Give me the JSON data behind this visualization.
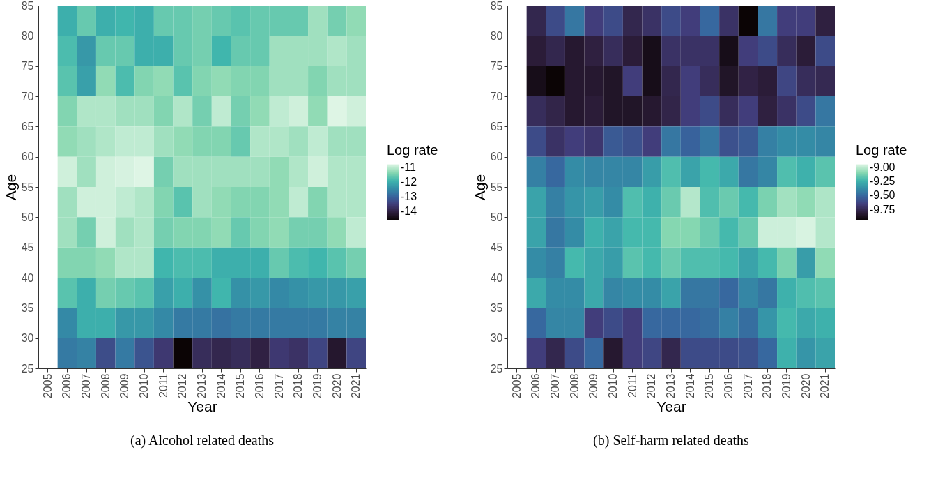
{
  "chart_data": [
    {
      "type": "heatmap",
      "annotations": [
        "(a) Alcohol related deaths"
      ],
      "xlabel": "Year",
      "ylabel": "Age",
      "clabel": "Log rate",
      "categories": [
        "2005",
        "2006",
        "2007",
        "2008",
        "2009",
        "2010",
        "2011",
        "2012",
        "2013",
        "2014",
        "2015",
        "2016",
        "2017",
        "2018",
        "2019",
        "2020",
        "2021"
      ],
      "ylim": [
        25,
        85
      ],
      "yticks": [
        25,
        30,
        35,
        40,
        45,
        50,
        55,
        60,
        65,
        70,
        75,
        80,
        85
      ],
      "clim": [
        -14.6,
        -10.8
      ],
      "cticks": [
        -11,
        -12,
        -13,
        -14
      ],
      "cells": [
        [
          null,
          -12.0,
          -11.6,
          -12.0,
          -11.9,
          -12.0,
          -11.6,
          -11.6,
          -11.5,
          -11.6,
          -11.7,
          -11.6,
          -11.6,
          -11.6,
          -11.2,
          -11.5,
          -11.3
        ],
        [
          null,
          -11.8,
          -12.3,
          -11.6,
          -11.6,
          -12.0,
          -12.0,
          -11.6,
          -11.5,
          -11.9,
          -11.6,
          -11.6,
          -11.2,
          -11.2,
          -11.2,
          -11.1,
          -11.2
        ],
        [
          null,
          -11.7,
          -12.2,
          -11.3,
          -11.8,
          -11.4,
          -11.3,
          -11.7,
          -11.4,
          -11.3,
          -11.4,
          -11.4,
          -11.2,
          -11.2,
          -11.4,
          -11.2,
          -11.2
        ],
        [
          null,
          -11.4,
          -11.1,
          -11.1,
          -11.2,
          -11.2,
          -11.4,
          -11.1,
          -11.5,
          -11.0,
          -11.5,
          -11.3,
          -11.0,
          -10.9,
          -11.3,
          -10.8,
          -10.9
        ],
        [
          null,
          -11.3,
          -11.2,
          -11.1,
          -11.0,
          -11.0,
          -11.2,
          -11.3,
          -11.4,
          -11.4,
          -11.6,
          -11.1,
          -11.1,
          -11.2,
          -11.0,
          -11.2,
          -11.2
        ],
        [
          null,
          -10.9,
          -11.2,
          -10.9,
          -10.85,
          -10.8,
          -11.5,
          -11.2,
          -11.2,
          -11.2,
          -11.2,
          -11.2,
          -11.3,
          -11.1,
          -10.9,
          -11.1,
          -11.1
        ],
        [
          null,
          -11.2,
          -10.9,
          -10.9,
          -11.0,
          -11.1,
          -11.4,
          -11.7,
          -11.2,
          -11.3,
          -11.4,
          -11.4,
          -11.3,
          -11.0,
          -11.4,
          -11.1,
          -11.1
        ],
        [
          null,
          -11.2,
          -11.5,
          -10.9,
          -11.2,
          -11.1,
          -11.5,
          -11.4,
          -11.4,
          -11.3,
          -11.6,
          -11.4,
          -11.3,
          -11.5,
          -11.5,
          -11.3,
          -11.0
        ],
        [
          null,
          -11.4,
          -11.4,
          -11.3,
          -11.1,
          -11.1,
          -11.9,
          -11.8,
          -11.8,
          -12.0,
          -12.0,
          -12.0,
          -11.6,
          -11.8,
          -11.9,
          -11.7,
          -11.5
        ],
        [
          null,
          -11.7,
          -12.0,
          -11.5,
          -11.6,
          -11.7,
          -12.2,
          -12.0,
          -12.4,
          -11.9,
          -12.4,
          -12.3,
          -12.5,
          -12.4,
          -12.3,
          -12.3,
          -12.2
        ],
        [
          null,
          -12.5,
          -12.0,
          -12.0,
          -12.3,
          -12.3,
          -12.5,
          -12.7,
          -12.7,
          -12.8,
          -12.7,
          -12.7,
          -12.7,
          -12.7,
          -12.7,
          -12.6,
          -12.6
        ],
        [
          null,
          -12.7,
          -12.6,
          -13.3,
          -12.7,
          -13.2,
          -13.6,
          -14.6,
          -13.8,
          -13.9,
          -13.8,
          -14.0,
          -13.6,
          -13.7,
          -13.4,
          -14.2,
          -13.4
        ]
      ]
    },
    {
      "type": "heatmap",
      "annotations": [
        "(b) Self-harm related deaths"
      ],
      "xlabel": "Year",
      "ylabel": "Age",
      "clabel": "Log rate",
      "categories": [
        "2005",
        "2006",
        "2007",
        "2008",
        "2009",
        "2010",
        "2011",
        "2012",
        "2013",
        "2014",
        "2015",
        "2016",
        "2017",
        "2018",
        "2019",
        "2020",
        "2021"
      ],
      "ylim": [
        25,
        85
      ],
      "yticks": [
        25,
        30,
        35,
        40,
        45,
        50,
        55,
        60,
        65,
        70,
        75,
        80,
        85
      ],
      "clim": [
        -9.93,
        -8.95
      ],
      "cticks": [
        {
          "value": -9,
          "label": "-9.00"
        },
        -9.25,
        {
          "value": -9.5,
          "label": "-9.50"
        },
        -9.75
      ],
      "cells": [
        [
          null,
          -9.75,
          -9.6,
          -9.45,
          -9.65,
          -9.6,
          -9.75,
          -9.7,
          -9.6,
          -9.65,
          -9.5,
          -9.7,
          -9.93,
          -9.45,
          -9.65,
          -9.65,
          -9.78
        ],
        [
          null,
          -9.8,
          -9.75,
          -9.82,
          -9.78,
          -9.72,
          -9.8,
          -9.88,
          -9.7,
          -9.7,
          -9.7,
          -9.88,
          -9.65,
          -9.6,
          -9.72,
          -9.8,
          -9.6
        ],
        [
          null,
          -9.88,
          -9.93,
          -9.82,
          -9.82,
          -9.84,
          -9.65,
          -9.88,
          -9.75,
          -9.65,
          -9.72,
          -9.84,
          -9.77,
          -9.8,
          -9.62,
          -9.72,
          -9.74
        ],
        [
          null,
          -9.72,
          -9.76,
          -9.82,
          -9.8,
          -9.84,
          -9.84,
          -9.82,
          -9.76,
          -9.65,
          -9.6,
          -9.72,
          -9.65,
          -9.78,
          -9.7,
          -9.6,
          -9.45
        ],
        [
          null,
          -9.6,
          -9.7,
          -9.65,
          -9.68,
          -9.55,
          -9.58,
          -9.65,
          -9.45,
          -9.52,
          -9.45,
          -9.58,
          -9.55,
          -9.42,
          -9.38,
          -9.38,
          -9.4
        ],
        [
          null,
          -9.42,
          -9.5,
          -9.38,
          -9.4,
          -9.4,
          -9.4,
          -9.32,
          -9.2,
          -9.3,
          -9.22,
          -9.28,
          -9.45,
          -9.4,
          -9.2,
          -9.25,
          -9.18
        ],
        [
          null,
          -9.3,
          -9.42,
          -9.35,
          -9.32,
          -9.38,
          -9.2,
          -9.25,
          -9.15,
          -9.02,
          -9.2,
          -9.15,
          -9.22,
          -9.12,
          -9.05,
          -9.08,
          -9.03
        ],
        [
          null,
          -9.3,
          -9.45,
          -9.38,
          -9.25,
          -9.3,
          -9.22,
          -9.22,
          -9.1,
          -9.1,
          -9.15,
          -9.22,
          -9.15,
          -8.98,
          -8.98,
          -8.96,
          -9.02
        ],
        [
          null,
          -9.38,
          -9.42,
          -9.22,
          -9.28,
          -9.32,
          -9.18,
          -9.22,
          -9.15,
          -9.2,
          -9.2,
          -9.22,
          -9.3,
          -9.22,
          -9.12,
          -9.32,
          -9.08
        ],
        [
          null,
          -9.28,
          -9.38,
          -9.38,
          -9.28,
          -9.4,
          -9.38,
          -9.38,
          -9.3,
          -9.45,
          -9.45,
          -9.5,
          -9.4,
          -9.45,
          -9.25,
          -9.2,
          -9.18
        ],
        [
          null,
          -9.5,
          -9.4,
          -9.4,
          -9.65,
          -9.6,
          -9.65,
          -9.5,
          -9.5,
          -9.5,
          -9.48,
          -9.42,
          -9.48,
          -9.35,
          -9.22,
          -9.28,
          -9.25
        ],
        [
          null,
          -9.65,
          -9.75,
          -9.6,
          -9.5,
          -9.82,
          -9.65,
          -9.62,
          -9.75,
          -9.6,
          -9.6,
          -9.6,
          -9.58,
          -9.5,
          -9.25,
          -9.35,
          -9.3
        ]
      ]
    }
  ]
}
